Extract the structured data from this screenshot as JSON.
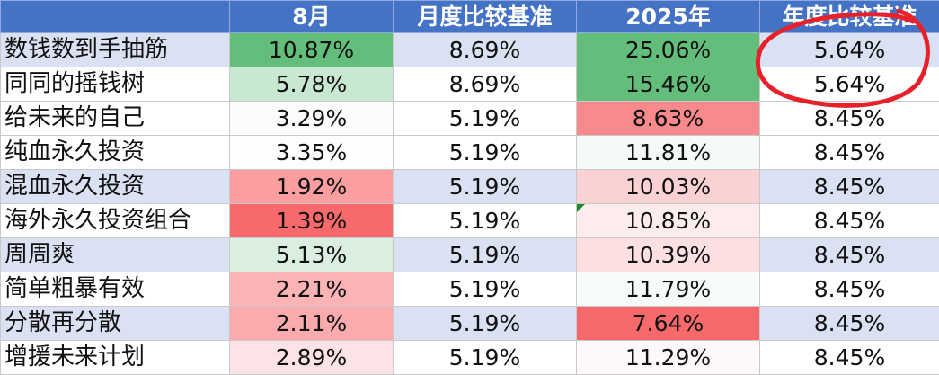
{
  "columns": [
    "",
    "8月",
    "月度比较基准",
    "2025年",
    "年度比较基准"
  ],
  "rows": [
    {
      "name": "数钱数到手抽筋",
      "aug": "10.87%",
      "aug_bg": "#63be7b",
      "month_bench": "8.69%",
      "ytd": "25.06%",
      "ytd_bg": "#63be7b",
      "year_bench": "5.64%"
    },
    {
      "name": "同同的摇钱树",
      "aug": "5.78%",
      "aug_bg": "#c9e8d2",
      "month_bench": "8.69%",
      "ytd": "15.46%",
      "ytd_bg": "#63be7b",
      "year_bench": "5.64%"
    },
    {
      "name": "给未来的自己",
      "aug": "3.29%",
      "aug_bg": "#fcfcff",
      "month_bench": "5.19%",
      "ytd": "8.63%",
      "ytd_bg": "#f98a8c",
      "year_bench": "8.45%"
    },
    {
      "name": "纯血永久投资",
      "aug": "3.35%",
      "aug_bg": "#fdfefd",
      "month_bench": "5.19%",
      "ytd": "11.81%",
      "ytd_bg": "#f4faf6",
      "year_bench": "8.45%"
    },
    {
      "name": "混血永久投资",
      "aug": "1.92%",
      "aug_bg": "#fa9ea0",
      "month_bench": "5.19%",
      "ytd": "10.03%",
      "ytd_bg": "#fbd2d4",
      "year_bench": "8.45%"
    },
    {
      "name": "海外永久投资组合",
      "aug": "1.39%",
      "aug_bg": "#f8696b",
      "month_bench": "5.19%",
      "ytd": "10.85%",
      "ytd_bg": "#fcecee",
      "year_bench": "8.45%",
      "ytd_mark": true
    },
    {
      "name": "周周爽",
      "aug": "5.13%",
      "aug_bg": "#daefe0",
      "month_bench": "5.19%",
      "ytd": "10.39%",
      "ytd_bg": "#fbdfe1",
      "year_bench": "8.45%"
    },
    {
      "name": "简单粗暴有效",
      "aug": "2.21%",
      "aug_bg": "#fbb3b5",
      "month_bench": "5.19%",
      "ytd": "11.79%",
      "ytd_bg": "#f6fbf8",
      "year_bench": "8.45%"
    },
    {
      "name": "分散再分散",
      "aug": "2.11%",
      "aug_bg": "#fbabad",
      "month_bench": "5.19%",
      "ytd": "7.64%",
      "ytd_bg": "#f8696b",
      "year_bench": "8.45%"
    },
    {
      "name": "增援未来计划",
      "aug": "2.89%",
      "aug_bg": "#fce3e5",
      "month_bench": "5.19%",
      "ytd": "11.29%",
      "ytd_bg": "#fdf8fa",
      "year_bench": "8.45%"
    }
  ],
  "annotation": {
    "shape": "hand-drawn-circle",
    "color": "#e8202a",
    "target": "年度比较基准 first two rows"
  },
  "colors": {
    "header_bg": "#4472c4",
    "header_text": "#ffffff",
    "band_bg": "#d9e1f2",
    "green_max": "#63be7b",
    "red_max": "#f8696b"
  }
}
